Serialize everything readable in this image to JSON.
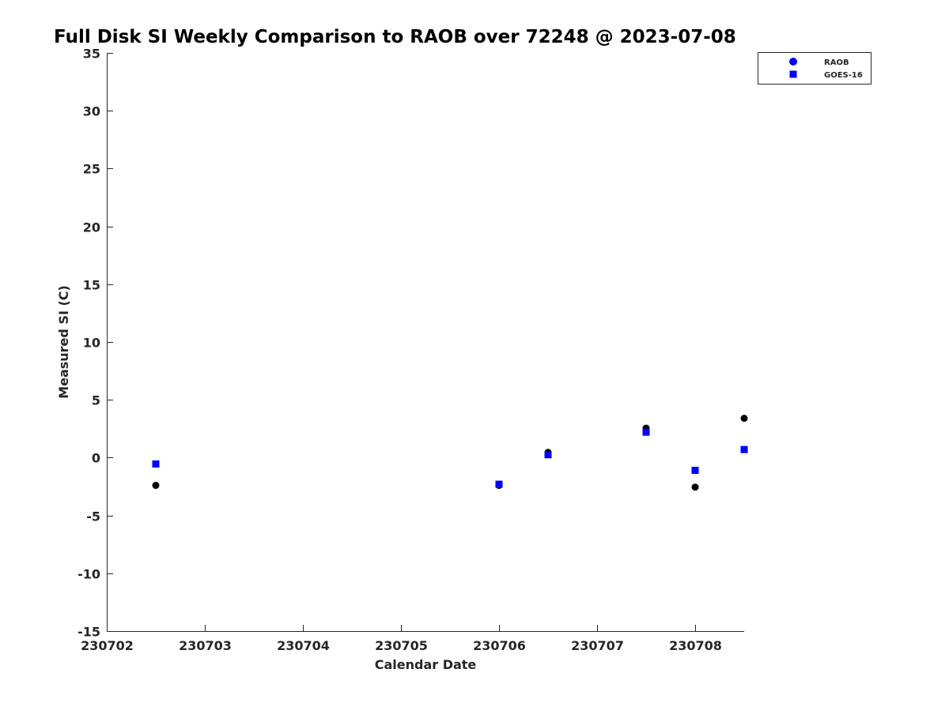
{
  "chart_data": {
    "type": "scatter",
    "title": "Full Disk SI Weekly Comparison to RAOB over 72248 @ 2023-07-08",
    "xlabel": "Calendar Date",
    "ylabel": "Measured SI (C)",
    "xlim": [
      230702,
      230708.5
    ],
    "ylim": [
      -15,
      35
    ],
    "xticks": [
      230702,
      230703,
      230704,
      230705,
      230706,
      230707,
      230708
    ],
    "xtick_labels": [
      "230702",
      "230703",
      "230704",
      "230705",
      "230706",
      "230707",
      "230708"
    ],
    "yticks": [
      -15,
      -10,
      -5,
      0,
      5,
      10,
      15,
      20,
      25,
      30,
      35
    ],
    "ytick_labels": [
      "-15",
      "-10",
      "-5",
      "0",
      "5",
      "10",
      "15",
      "20",
      "25",
      "30",
      "35"
    ],
    "grid": false,
    "legend_position": "top-right",
    "series": [
      {
        "name": "RAOB",
        "marker": "circle",
        "color": "#000000",
        "legend_color": "#0000ff",
        "x": [
          230702.5,
          230706.0,
          230706.5,
          230707.5,
          230708.0,
          230708.5
        ],
        "y": [
          -2.4,
          -2.4,
          0.45,
          2.55,
          -2.55,
          3.4
        ]
      },
      {
        "name": "GOES-16",
        "marker": "square",
        "color": "#0000ff",
        "legend_color": "#0000ff",
        "x": [
          230702.5,
          230706.0,
          230706.5,
          230707.5,
          230708.0,
          230708.5
        ],
        "y": [
          -0.55,
          -2.3,
          0.25,
          2.2,
          -1.1,
          0.7
        ]
      }
    ]
  }
}
